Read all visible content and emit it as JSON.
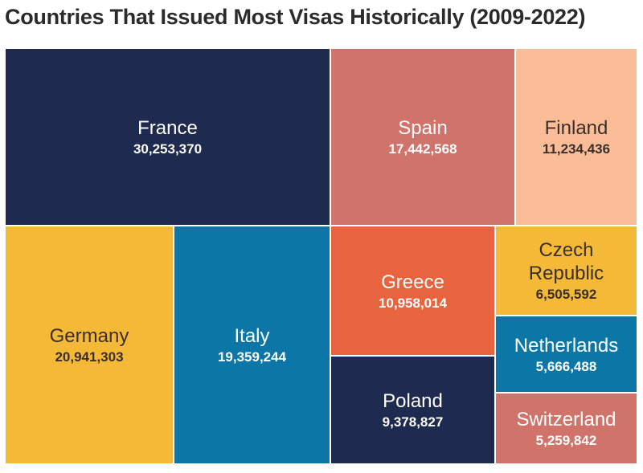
{
  "chart_data": {
    "type": "treemap",
    "title": "Countries That Issued Most Visas Historically (2009-2022)",
    "items": [
      {
        "name": "France",
        "value": 30253370,
        "value_label": "30,253,370",
        "color": "#1e2a4f",
        "text": "light"
      },
      {
        "name": "Spain",
        "value": 17442568,
        "value_label": "17,442,568",
        "color": "#d0736b",
        "text": "light"
      },
      {
        "name": "Finland",
        "value": 11234436,
        "value_label": "11,234,436",
        "color": "#fbbd98",
        "text": "dark"
      },
      {
        "name": "Germany",
        "value": 20941303,
        "value_label": "20,941,303",
        "color": "#f4b936",
        "text": "dark"
      },
      {
        "name": "Italy",
        "value": 19359244,
        "value_label": "19,359,244",
        "color": "#0c77a7",
        "text": "light"
      },
      {
        "name": "Greece",
        "value": 10958014,
        "value_label": "10,958,014",
        "color": "#e8643e",
        "text": "light"
      },
      {
        "name": "Czech\nRepublic",
        "value": 6505592,
        "value_label": "6,505,592",
        "color": "#f4b936",
        "text": "dark"
      },
      {
        "name": "Netherlands",
        "value": 5666488,
        "value_label": "5,666,488",
        "color": "#0c77a7",
        "text": "light"
      },
      {
        "name": "Poland",
        "value": 9378827,
        "value_label": "9,378,827",
        "color": "#1e2a4f",
        "text": "light"
      },
      {
        "name": "Switzerland",
        "value": 5259842,
        "value_label": "5,259,842",
        "color": "#d0736b",
        "text": "light"
      }
    ]
  }
}
